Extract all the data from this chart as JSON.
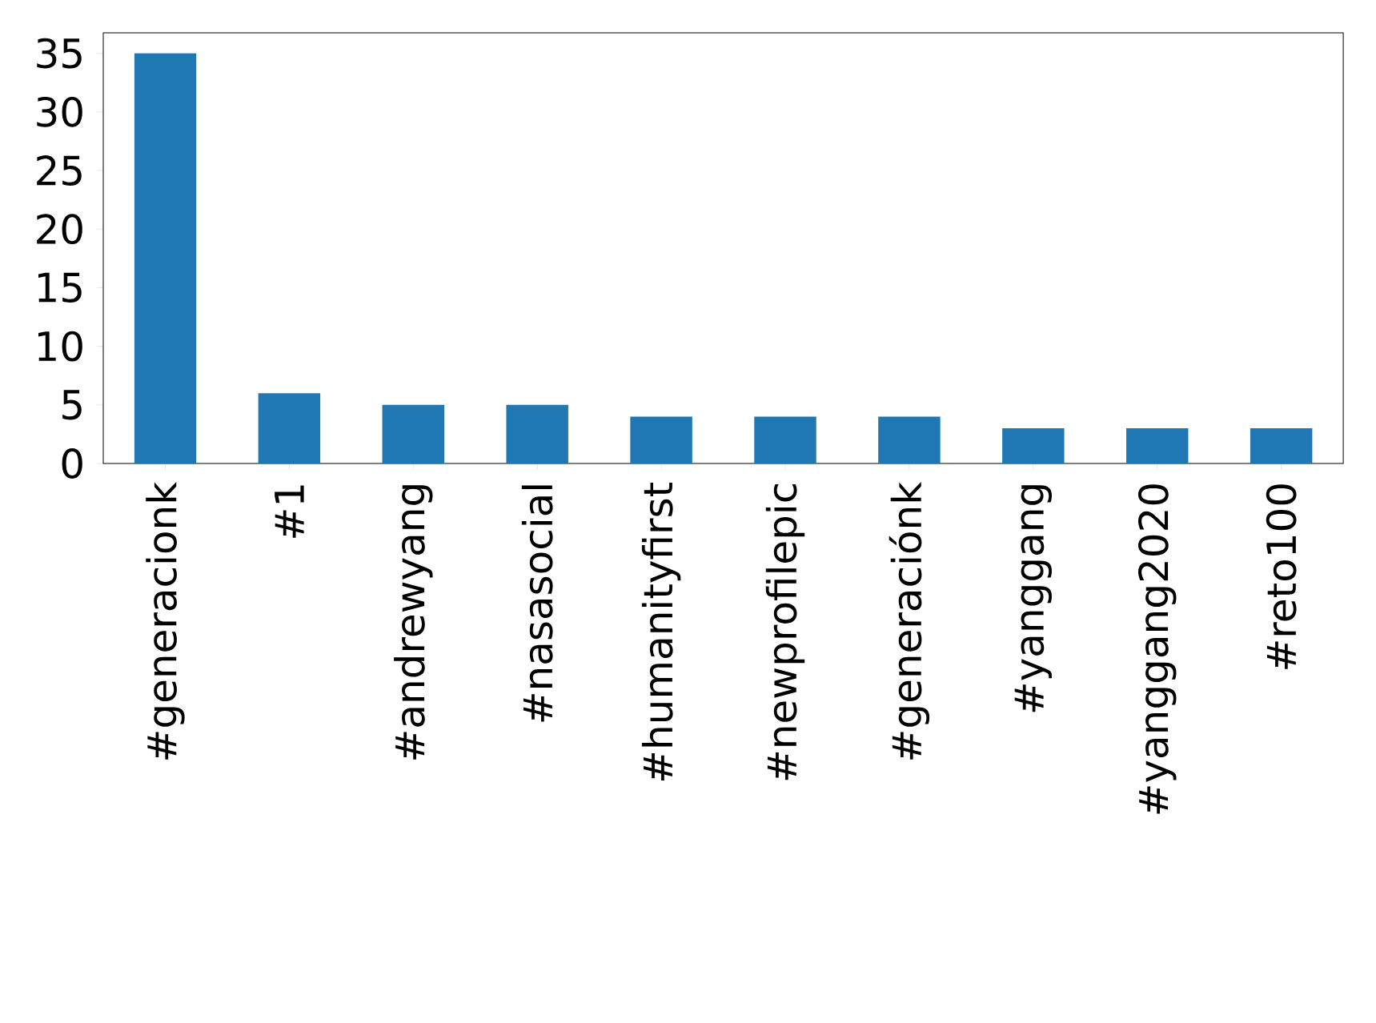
{
  "chart_data": {
    "type": "bar",
    "categories": [
      "#generacionk",
      "#1",
      "#andrewyang",
      "#nasasocial",
      "#humanityfirst",
      "#newprofilepic",
      "#generaciónk",
      "#yanggang",
      "#yanggang2020",
      "#reto100"
    ],
    "values": [
      35,
      6,
      5,
      5,
      4,
      4,
      4,
      3,
      3,
      3
    ],
    "color": "#1f77b4",
    "ylim": [
      0,
      36.75
    ],
    "yticks": [
      0,
      5,
      10,
      15,
      20,
      25,
      30,
      35
    ],
    "grid": false
  }
}
